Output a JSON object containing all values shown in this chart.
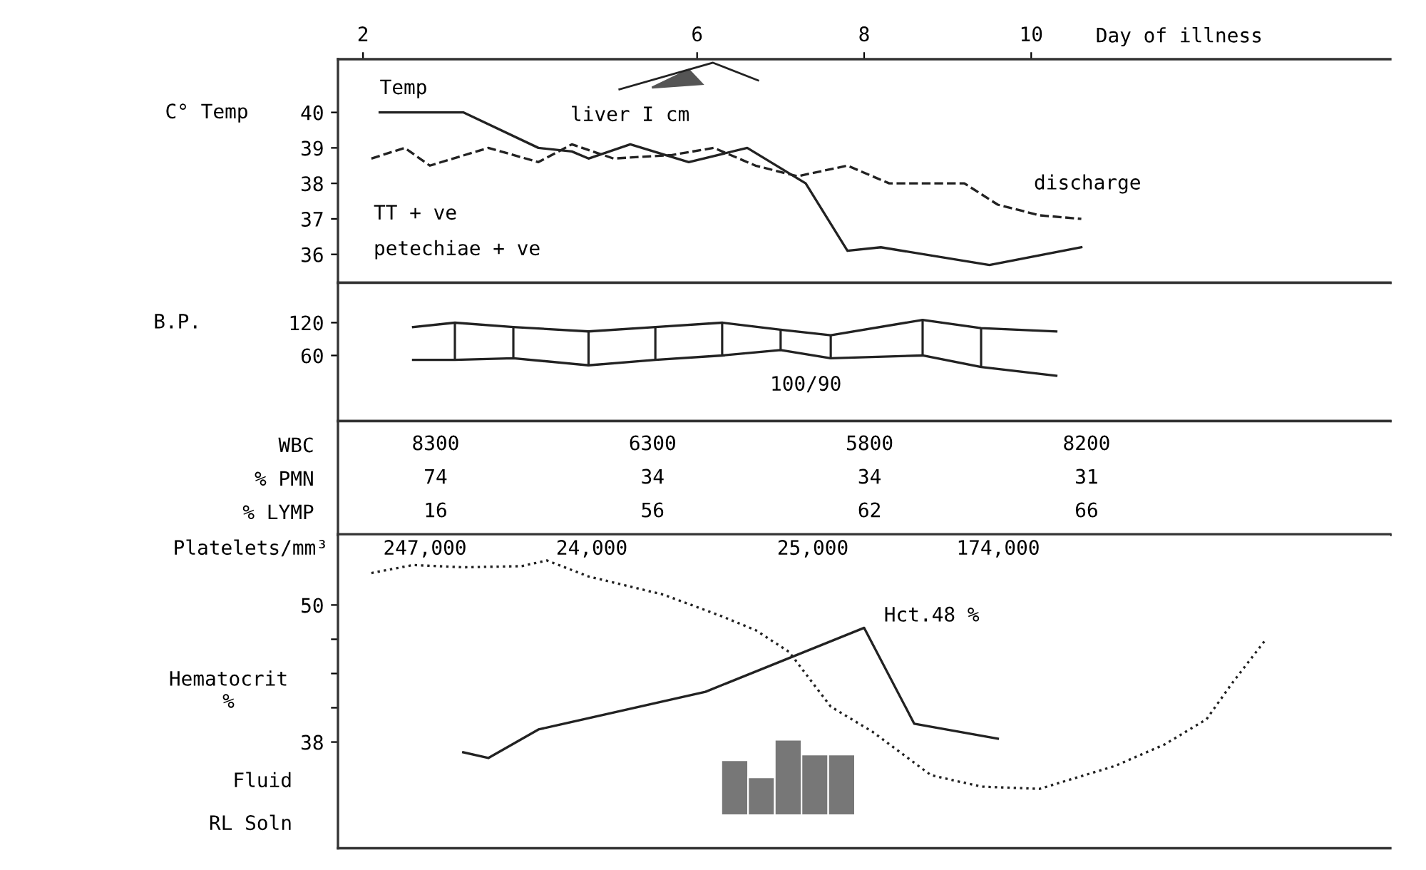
{
  "chart_data": [
    {
      "type": "line",
      "xlim": [
        1.7,
        14.3
      ],
      "ylim": [
        35.2,
        41.5
      ],
      "xticks": [
        2,
        6,
        8,
        10
      ],
      "yticks": [
        36,
        37,
        38,
        39,
        40
      ],
      "xlabel": "Day of illness",
      "ylabel": "C° Temp",
      "series": [
        {
          "name": "Temp",
          "color": "#222222",
          "line_style": "solid",
          "x": [
            2.2,
            3.2,
            4.1,
            4.5,
            4.7,
            5.2,
            5.9,
            6.6,
            7.3,
            7.8,
            8.2,
            9.5,
            10.6
          ],
          "values": [
            40,
            40,
            39,
            38.9,
            38.7,
            39.1,
            38.6,
            39.0,
            38.0,
            36.1,
            36.2,
            35.7,
            36.2
          ]
        },
        {
          "color": "#222222",
          "line_style": "dashed",
          "x": [
            2.1,
            2.5,
            2.8,
            3.5,
            4.1,
            4.5,
            5.0,
            5.7,
            6.2,
            6.7,
            7.2,
            7.8,
            8.3,
            8.9,
            9.2,
            9.6,
            10.1,
            10.6
          ],
          "values": [
            38.7,
            39.0,
            38.5,
            39.0,
            38.6,
            39.1,
            38.7,
            38.8,
            39.0,
            38.5,
            38.2,
            38.5,
            38.0,
            38.0,
            38.0,
            37.4,
            37.1,
            37.0
          ]
        }
      ],
      "annotations": [
        "liver I cm",
        "TT + ve",
        "petechiae + ve",
        "discharge"
      ]
    },
    {
      "type": "line",
      "xlim": [
        1.7,
        14.3
      ],
      "ylim": [
        -60,
        193
      ],
      "yticks": [
        60,
        120
      ],
      "ylabel": "B.P.",
      "tick_labels": "y",
      "series": [
        {
          "color": "#222222",
          "x": [
            2.6,
            3.1,
            3.8,
            4.7,
            5.5,
            6.3,
            7.0,
            7.6,
            8.7,
            9.4,
            10.3
          ],
          "values": [
            112,
            120,
            112,
            104,
            112,
            120,
            107,
            97,
            125,
            110,
            104
          ]
        },
        {
          "color": "#222222",
          "x": [
            2.6,
            3.1,
            3.8,
            4.7,
            5.5,
            6.3,
            7.0,
            7.6,
            8.7,
            9.4,
            10.3
          ],
          "values": [
            52,
            52,
            55,
            42,
            52,
            60,
            70,
            55,
            60,
            39,
            23
          ]
        },
        {
          "type": "bar",
          "color": "#222222",
          "x": [
            3.1,
            3.8,
            4.7,
            5.5,
            6.3,
            7.0,
            7.6,
            8.7,
            9.4
          ],
          "base": [
            52,
            55,
            42,
            52,
            60,
            70,
            55,
            60,
            39
          ],
          "values": [
            68,
            57,
            62,
            60,
            60,
            37,
            42,
            65,
            71
          ]
        }
      ],
      "annotations": [
        "100/90"
      ]
    },
    {
      "type": "heatmap",
      "categories": [
        null,
        null,
        null,
        null
      ],
      "y_categories": [
        "WBC",
        "% PMN",
        "% LYMP"
      ],
      "data_labels": true,
      "cells": [
        [
          8300,
          6300,
          5800,
          8200
        ],
        [
          74,
          34,
          34,
          31
        ],
        [
          16,
          56,
          62,
          66
        ]
      ]
    },
    {
      "type": "line",
      "xlim": [
        1.7,
        14.3
      ],
      "ylim": [
        28.7,
        56.2
      ],
      "yticks": [
        50,
        {
          "value": 47,
          "label": null
        },
        {
          "value": 44,
          "label": null
        },
        {
          "value": 41,
          "label": null
        },
        38
      ],
      "ylabel": "Hematocrit\n%",
      "tick_labels": "y",
      "series": [
        {
          "color": "#222222",
          "line_style": "solid",
          "x": [
            3.2,
            3.5,
            4.1,
            6.1,
            8.0,
            8.6,
            9.6
          ],
          "values": [
            37.1,
            36.6,
            39.1,
            42.4,
            48,
            39.6,
            38.3
          ]
        },
        {
          "color": "#222222",
          "line_style": "dotted",
          "x": [
            2.1,
            2.6,
            3.2,
            3.9,
            4.2,
            4.7,
            5.6,
            6.3,
            6.7,
            7.1,
            7.6,
            8.1,
            8.8,
            9.4,
            10.1,
            11.0,
            11.6,
            12.1,
            12.4,
            12.8
          ],
          "values": [
            52.8,
            53.5,
            53.3,
            53.4,
            53.9,
            52.5,
            50.9,
            49.0,
            47.8,
            45.9,
            41.1,
            38.9,
            35.1,
            34.1,
            33.9,
            35.9,
            37.8,
            40.0,
            43.1,
            46.9
          ]
        },
        {
          "type": "bar",
          "color": "#777777",
          "x": [
            6.45,
            6.77,
            7.09,
            7.41,
            7.73
          ],
          "base": [
            31.6,
            31.6,
            31.6,
            31.6,
            31.6
          ],
          "values": [
            4.8,
            3.3,
            6.6,
            5.3,
            5.3
          ]
        }
      ],
      "annotations": [
        {
          "text": "Hct.48 %",
          "x": 8.0,
          "y": 48
        },
        "247,000",
        "24,000",
        "25,000",
        "174,000",
        "Platelets/mm³",
        "Fluid",
        "RL Soln"
      ]
    }
  ]
}
